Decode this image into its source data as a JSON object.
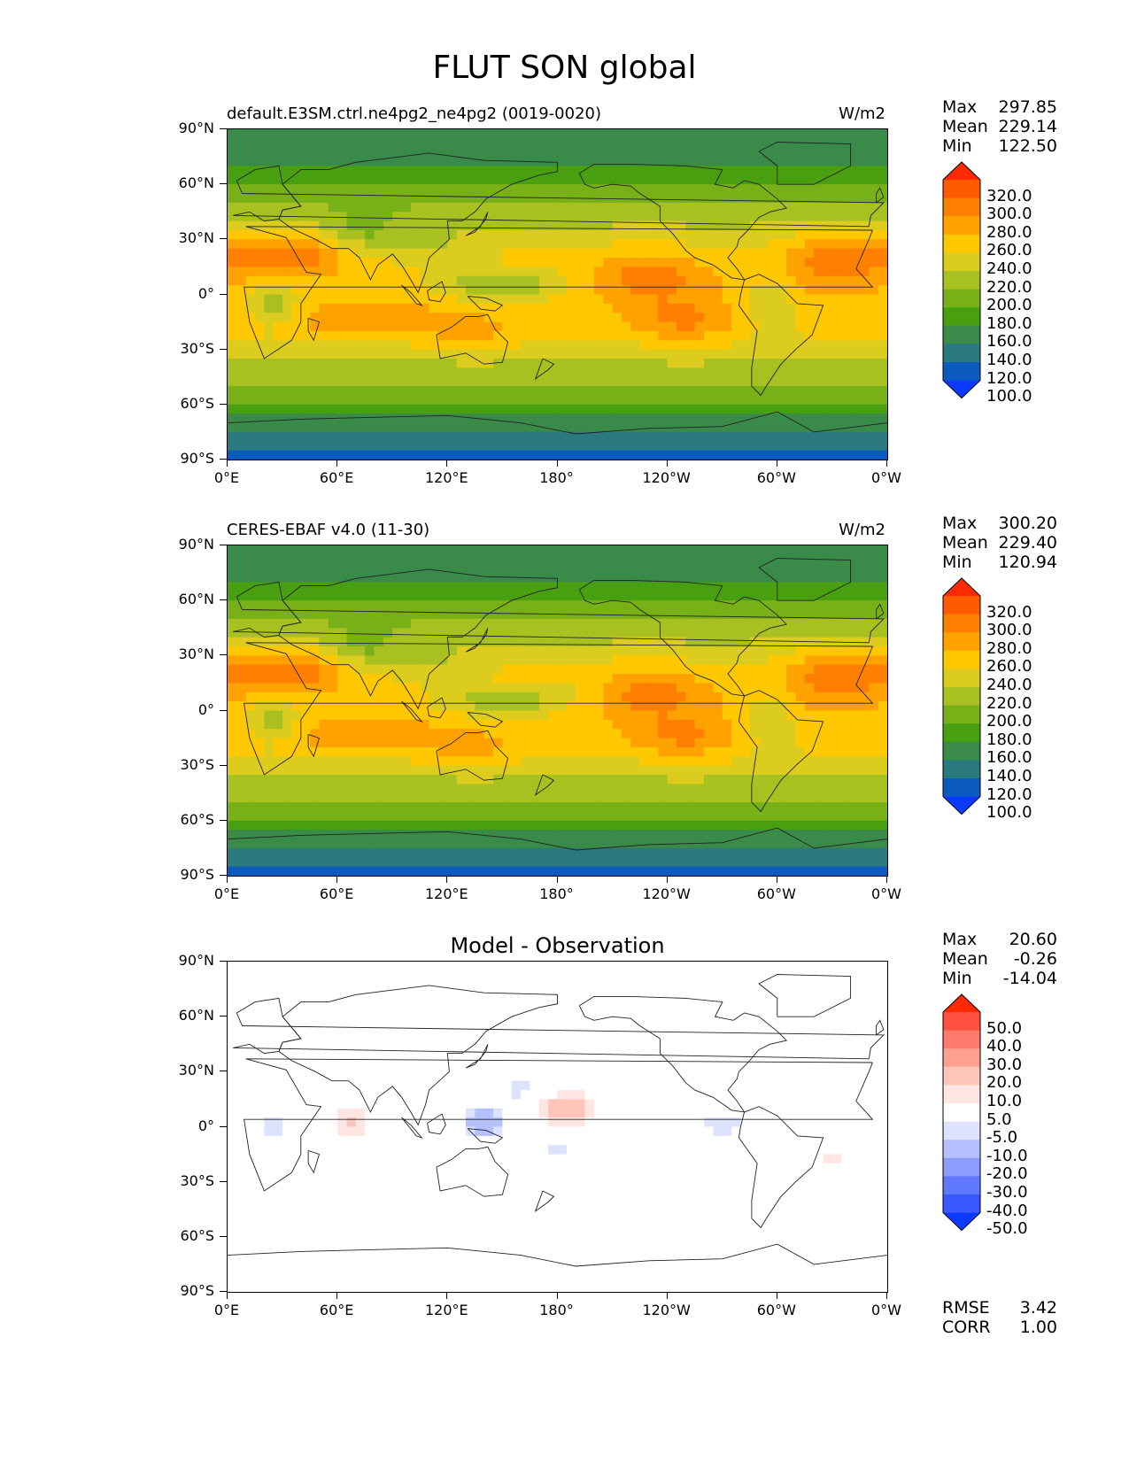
{
  "figure": {
    "title": "FLUT SON global"
  },
  "axes": {
    "yticks": [
      "90°N",
      "60°N",
      "30°N",
      "0°",
      "30°S",
      "60°S",
      "90°S"
    ],
    "xticks": [
      "0°E",
      "60°E",
      "120°E",
      "180°",
      "120°W",
      "60°W",
      "0°W"
    ]
  },
  "panels": [
    {
      "id": "model",
      "left_label": "default.E3SM.ctrl.ne4pg2_ne4pg2 (0019-0020)",
      "right_label": "W/m2",
      "center_label": "",
      "stats": {
        "max_label": "Max",
        "max": "297.85",
        "mean_label": "Mean",
        "mean": "229.14",
        "min_label": "Min",
        "min": "122.50"
      },
      "colorbar": {
        "labels": [
          "320.0",
          "300.0",
          "280.0",
          "260.0",
          "240.0",
          "220.0",
          "200.0",
          "180.0",
          "160.0",
          "140.0",
          "120.0",
          "100.0"
        ],
        "colors": [
          "#ff2a00",
          "#ff5a00",
          "#ff7f00",
          "#ffa200",
          "#ffc800",
          "#dccc1e",
          "#a8c020",
          "#78b018",
          "#48a010",
          "#3a8a4a",
          "#2a7a80",
          "#0a5ac0",
          "#0a3aff"
        ]
      }
    },
    {
      "id": "obs",
      "left_label": "CERES-EBAF v4.0 (11-30)",
      "right_label": "W/m2",
      "center_label": "",
      "stats": {
        "max_label": "Max",
        "max": "300.20",
        "mean_label": "Mean",
        "mean": "229.40",
        "min_label": "Min",
        "min": "120.94"
      },
      "colorbar": {
        "labels": [
          "320.0",
          "300.0",
          "280.0",
          "260.0",
          "240.0",
          "220.0",
          "200.0",
          "180.0",
          "160.0",
          "140.0",
          "120.0",
          "100.0"
        ],
        "colors": [
          "#ff2a00",
          "#ff5a00",
          "#ff7f00",
          "#ffa200",
          "#ffc800",
          "#dccc1e",
          "#a8c020",
          "#78b018",
          "#48a010",
          "#3a8a4a",
          "#2a7a80",
          "#0a5ac0",
          "#0a3aff"
        ]
      }
    },
    {
      "id": "diff",
      "left_label": "",
      "right_label": "",
      "center_label": "Model - Observation",
      "stats": {
        "max_label": "Max",
        "max": "20.60",
        "mean_label": "Mean",
        "mean": "-0.26",
        "min_label": "Min",
        "min": "-14.04"
      },
      "colorbar": {
        "labels": [
          "50.0",
          "40.0",
          "30.0",
          "20.0",
          "10.0",
          "5.0",
          "-5.0",
          "-10.0",
          "-20.0",
          "-30.0",
          "-40.0",
          "-50.0"
        ],
        "colors": [
          "#ff2a00",
          "#ff5040",
          "#ff7a6a",
          "#ffa090",
          "#ffc4ba",
          "#ffe6e2",
          "#ffffff",
          "#dde2ff",
          "#b4c0ff",
          "#8a9cff",
          "#5f78ff",
          "#3a58ff",
          "#0a3aff"
        ]
      },
      "footer": {
        "rmse_label": "RMSE",
        "rmse": "3.42",
        "corr_label": "CORR",
        "corr": "1.00"
      }
    }
  ]
}
